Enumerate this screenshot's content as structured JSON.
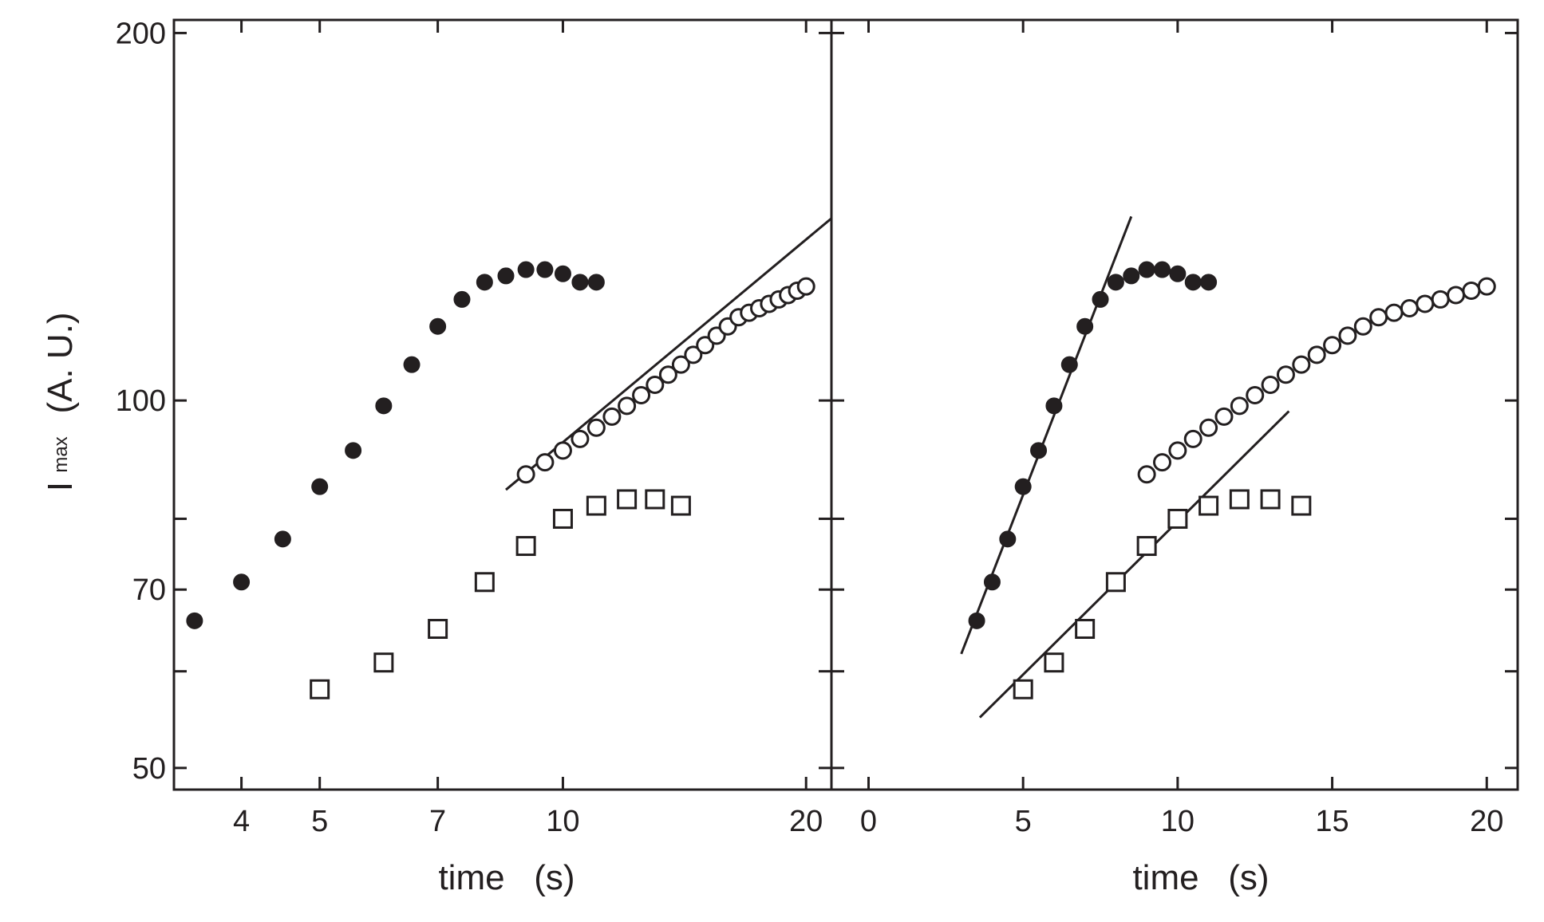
{
  "chart_data": [
    {
      "type": "scatter",
      "panel": "left",
      "xscale": "log",
      "yscale": "log",
      "xlabel": "time   (s)",
      "ylabel_main": "I",
      "ylabel_sub": "max",
      "ylabel_units": "(A. U.)",
      "xlim": [
        3.3,
        21.5
      ],
      "ylim": [
        48,
        205
      ],
      "xticks": [
        4,
        5,
        7,
        10,
        20
      ],
      "xtick_labels": [
        "4",
        "5",
        "7",
        "10",
        "20"
      ],
      "yticks_major": [
        50,
        70,
        100,
        200
      ],
      "ytick_labels": [
        "50",
        "70",
        "100",
        "200"
      ],
      "yticks_minor": [
        60,
        80
      ],
      "series": [
        {
          "name": "filled-circles",
          "marker": "filled-circle",
          "x": [
            3.5,
            4,
            4.5,
            5,
            5.5,
            6,
            6.5,
            7,
            7.5,
            8,
            8.5,
            9,
            9.5,
            10,
            10.5,
            11
          ],
          "y": [
            66,
            71,
            77,
            85,
            91,
            99,
            107,
            115,
            121,
            125,
            126.5,
            128,
            128,
            127,
            125,
            125
          ]
        },
        {
          "name": "open-circles",
          "marker": "open-circle",
          "x": [
            9,
            9.5,
            10,
            10.5,
            11,
            11.5,
            12,
            12.5,
            13,
            13.5,
            14,
            14.5,
            15,
            15.5,
            16,
            16.5,
            17,
            17.5,
            18,
            18.5,
            19,
            19.5,
            20
          ],
          "y": [
            87,
            89,
            91,
            93,
            95,
            97,
            99,
            101,
            103,
            105,
            107,
            109,
            111,
            113,
            115,
            117,
            118,
            119,
            120,
            121,
            122,
            123,
            124
          ]
        },
        {
          "name": "open-squares",
          "marker": "open-square",
          "x": [
            5,
            6,
            7,
            8,
            9,
            10,
            11,
            12,
            13,
            14
          ],
          "y": [
            58,
            61,
            65,
            71,
            76,
            80,
            82,
            83,
            83,
            82
          ]
        }
      ],
      "fit_lines": [
        {
          "name": "power-law-fit",
          "x": [
            8.5,
            21.5
          ],
          "y": [
            84.5,
            141
          ]
        }
      ]
    },
    {
      "type": "scatter",
      "panel": "right",
      "xscale": "linear",
      "yscale": "log",
      "xlabel": "time   (s)",
      "xlim": [
        -1.2,
        21
      ],
      "ylim": [
        48,
        205
      ],
      "xticks": [
        0,
        5,
        10,
        15,
        20
      ],
      "xtick_labels": [
        "0",
        "5",
        "10",
        "15",
        "20"
      ],
      "yticks": [
        50,
        60,
        70,
        80,
        100,
        200
      ],
      "series": [
        {
          "name": "filled-circles",
          "marker": "filled-circle",
          "x": [
            3.5,
            4,
            4.5,
            5,
            5.5,
            6,
            6.5,
            7,
            7.5,
            8,
            8.5,
            9,
            9.5,
            10,
            10.5,
            11
          ],
          "y": [
            66,
            71,
            77,
            85,
            91,
            99,
            107,
            115,
            121,
            125,
            126.5,
            128,
            128,
            127,
            125,
            125
          ]
        },
        {
          "name": "open-circles",
          "marker": "open-circle",
          "x": [
            9,
            9.5,
            10,
            10.5,
            11,
            11.5,
            12,
            12.5,
            13,
            13.5,
            14,
            14.5,
            15,
            15.5,
            16,
            16.5,
            17,
            17.5,
            18,
            18.5,
            19,
            19.5,
            20
          ],
          "y": [
            87,
            89,
            91,
            93,
            95,
            97,
            99,
            101,
            103,
            105,
            107,
            109,
            111,
            113,
            115,
            117,
            118,
            119,
            120,
            121,
            122,
            123,
            124
          ]
        },
        {
          "name": "open-squares",
          "marker": "open-square",
          "x": [
            5,
            6,
            7,
            8,
            9,
            10,
            11,
            12,
            13,
            14
          ],
          "y": [
            58,
            61,
            65,
            71,
            76,
            80,
            82,
            83,
            83,
            82
          ]
        }
      ],
      "fit_lines": [
        {
          "name": "exponential-fit-filled",
          "x": [
            3.0,
            8.5
          ],
          "y": [
            62,
            141.5
          ]
        },
        {
          "name": "exponential-fit-squares",
          "x": [
            3.6,
            13.6
          ],
          "y": [
            55,
            98
          ]
        }
      ]
    }
  ]
}
